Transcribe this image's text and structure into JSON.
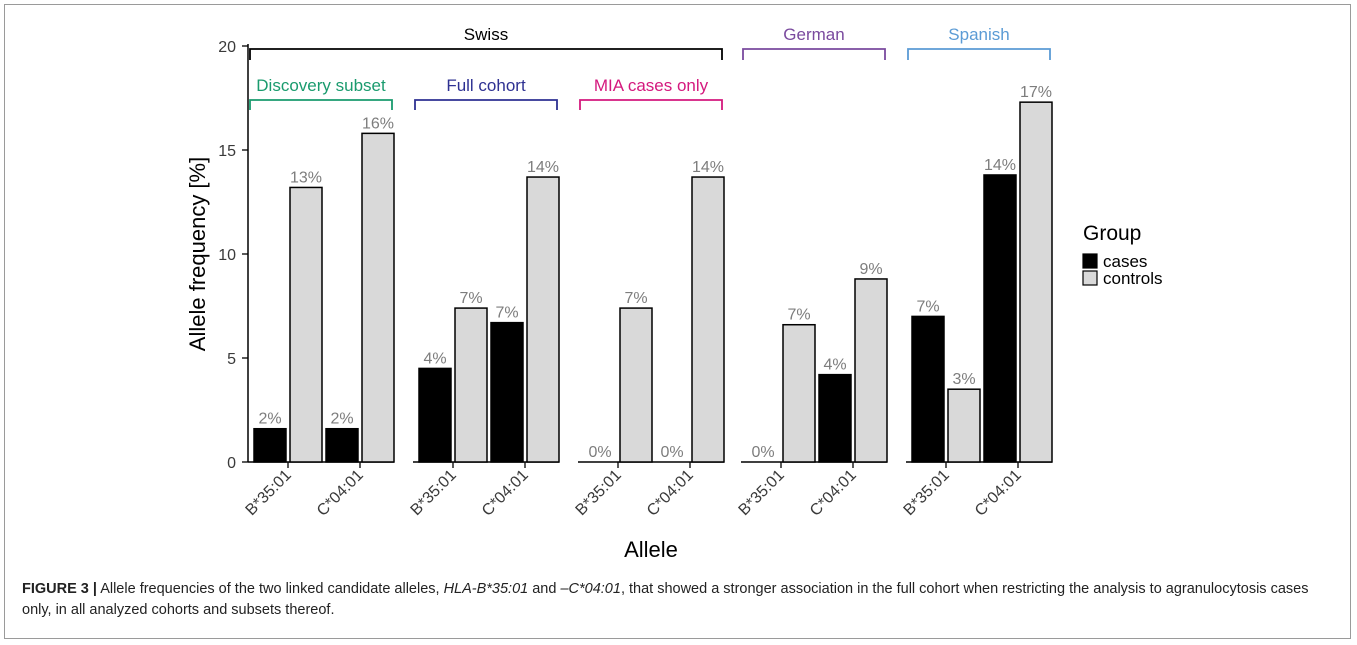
{
  "chart_data": {
    "type": "bar",
    "xlabel": "Allele",
    "ylabel": "Allele frequency [%]",
    "ylim": [
      0,
      20
    ],
    "yticks": [
      0,
      5,
      10,
      15,
      20
    ],
    "legend": {
      "title": "Group",
      "placement": "right",
      "entries": [
        {
          "name": "cases",
          "color": "#000000"
        },
        {
          "name": "controls",
          "color": "#d9d9d9"
        }
      ]
    },
    "facets": [
      {
        "name": "Discovery subset",
        "color": "#1a9b6e",
        "categories": [
          "B*35:01",
          "C*04:01"
        ],
        "series": [
          {
            "name": "cases",
            "values": [
              1.6,
              1.6
            ],
            "labels": [
              "2%",
              "2%"
            ]
          },
          {
            "name": "controls",
            "values": [
              13.2,
              15.8
            ],
            "labels": [
              "13%",
              "16%"
            ]
          }
        ]
      },
      {
        "name": "Full cohort",
        "color": "#2e3192",
        "categories": [
          "B*35:01",
          "C*04:01"
        ],
        "series": [
          {
            "name": "cases",
            "values": [
              4.5,
              6.7
            ],
            "labels": [
              "4%",
              "7%"
            ]
          },
          {
            "name": "controls",
            "values": [
              7.4,
              13.7
            ],
            "labels": [
              "7%",
              "14%"
            ]
          }
        ]
      },
      {
        "name": "MIA cases only",
        "color": "#d4197e",
        "categories": [
          "B*35:01",
          "C*04:01"
        ],
        "series": [
          {
            "name": "cases",
            "values": [
              0,
              0
            ],
            "labels": [
              "0%",
              "0%"
            ]
          },
          {
            "name": "controls",
            "values": [
              7.4,
              13.7
            ],
            "labels": [
              "7%",
              "14%"
            ]
          }
        ]
      },
      {
        "name": "",
        "color": "#7a4a9e",
        "categories": [
          "B*35:01",
          "C*04:01"
        ],
        "series": [
          {
            "name": "cases",
            "values": [
              0,
              4.2
            ],
            "labels": [
              "0%",
              "4%"
            ]
          },
          {
            "name": "controls",
            "values": [
              6.6,
              8.8
            ],
            "labels": [
              "7%",
              "9%"
            ]
          }
        ]
      },
      {
        "name": "",
        "color": "#5b9bd5",
        "categories": [
          "B*35:01",
          "C*04:01"
        ],
        "series": [
          {
            "name": "cases",
            "values": [
              7.0,
              13.8
            ],
            "labels": [
              "7%",
              "14%"
            ]
          },
          {
            "name": "controls",
            "values": [
              3.5,
              17.3
            ],
            "labels": [
              "3%",
              "17%"
            ]
          }
        ]
      }
    ],
    "cohort_brackets": [
      {
        "name": "Swiss",
        "color": "#000000",
        "facets": [
          0,
          1,
          2
        ]
      },
      {
        "name": "German",
        "color": "#7a4a9e",
        "facets": [
          3
        ]
      },
      {
        "name": "Spanish",
        "color": "#5b9bd5",
        "facets": [
          4
        ]
      }
    ]
  },
  "caption": {
    "label": "FIGURE 3 |",
    "text_1": " Allele frequencies of the two linked candidate alleles, ",
    "italic_1": "HLA-B*35:01",
    "text_2": " and ",
    "italic_2": "–C*04:01",
    "text_3": ", that showed a stronger association in the full cohort when restricting the analysis to agranulocytosis cases only, in all analyzed cohorts and subsets thereof."
  }
}
